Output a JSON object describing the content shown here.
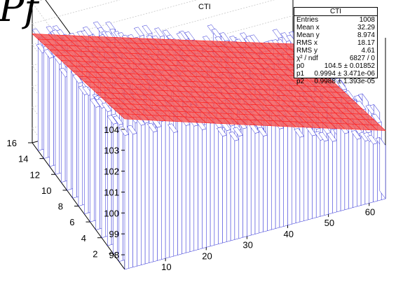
{
  "decor": {
    "glyph": "Pf",
    "title_fragment": "CTI"
  },
  "stats": {
    "name": "CTI",
    "rows": [
      {
        "key": "Entries",
        "value": "1008"
      },
      {
        "key": "Mean x",
        "value": "32.29"
      },
      {
        "key": "Mean y",
        "value": "8.974"
      },
      {
        "key": "RMS x",
        "value": "18.17"
      },
      {
        "key": "RMS y",
        "value": "4.61"
      },
      {
        "key": "χ² / ndf",
        "value": "6827 / 0"
      },
      {
        "key": "p0",
        "value": "104.5 ± 0.01852"
      },
      {
        "key": "p1",
        "value": "0.9994 ± 3.471e-06"
      },
      {
        "key": "p2",
        "value": "0.9988 ± 1.393e-05"
      }
    ]
  },
  "chart_data": {
    "type": "lego",
    "title": "CTI",
    "x_ticks": [
      10,
      20,
      30,
      40,
      50,
      60
    ],
    "y_ticks": [
      2,
      4,
      6,
      8,
      10,
      12,
      14,
      16
    ],
    "z_ticks": [
      98,
      99,
      100,
      101,
      102,
      103,
      104
    ],
    "xlim": [
      0,
      64
    ],
    "ylim": [
      0,
      16
    ],
    "zlim": [
      97.3,
      105
    ],
    "fit": {
      "function": "p0 * p1^x * p2^y",
      "p0": 104.5,
      "p1": 0.9994,
      "p2": 0.9988
    },
    "colors": {
      "bars": "#2b2bd6",
      "fit": "#ff2020",
      "fit_fill": "#f25a5a"
    }
  }
}
